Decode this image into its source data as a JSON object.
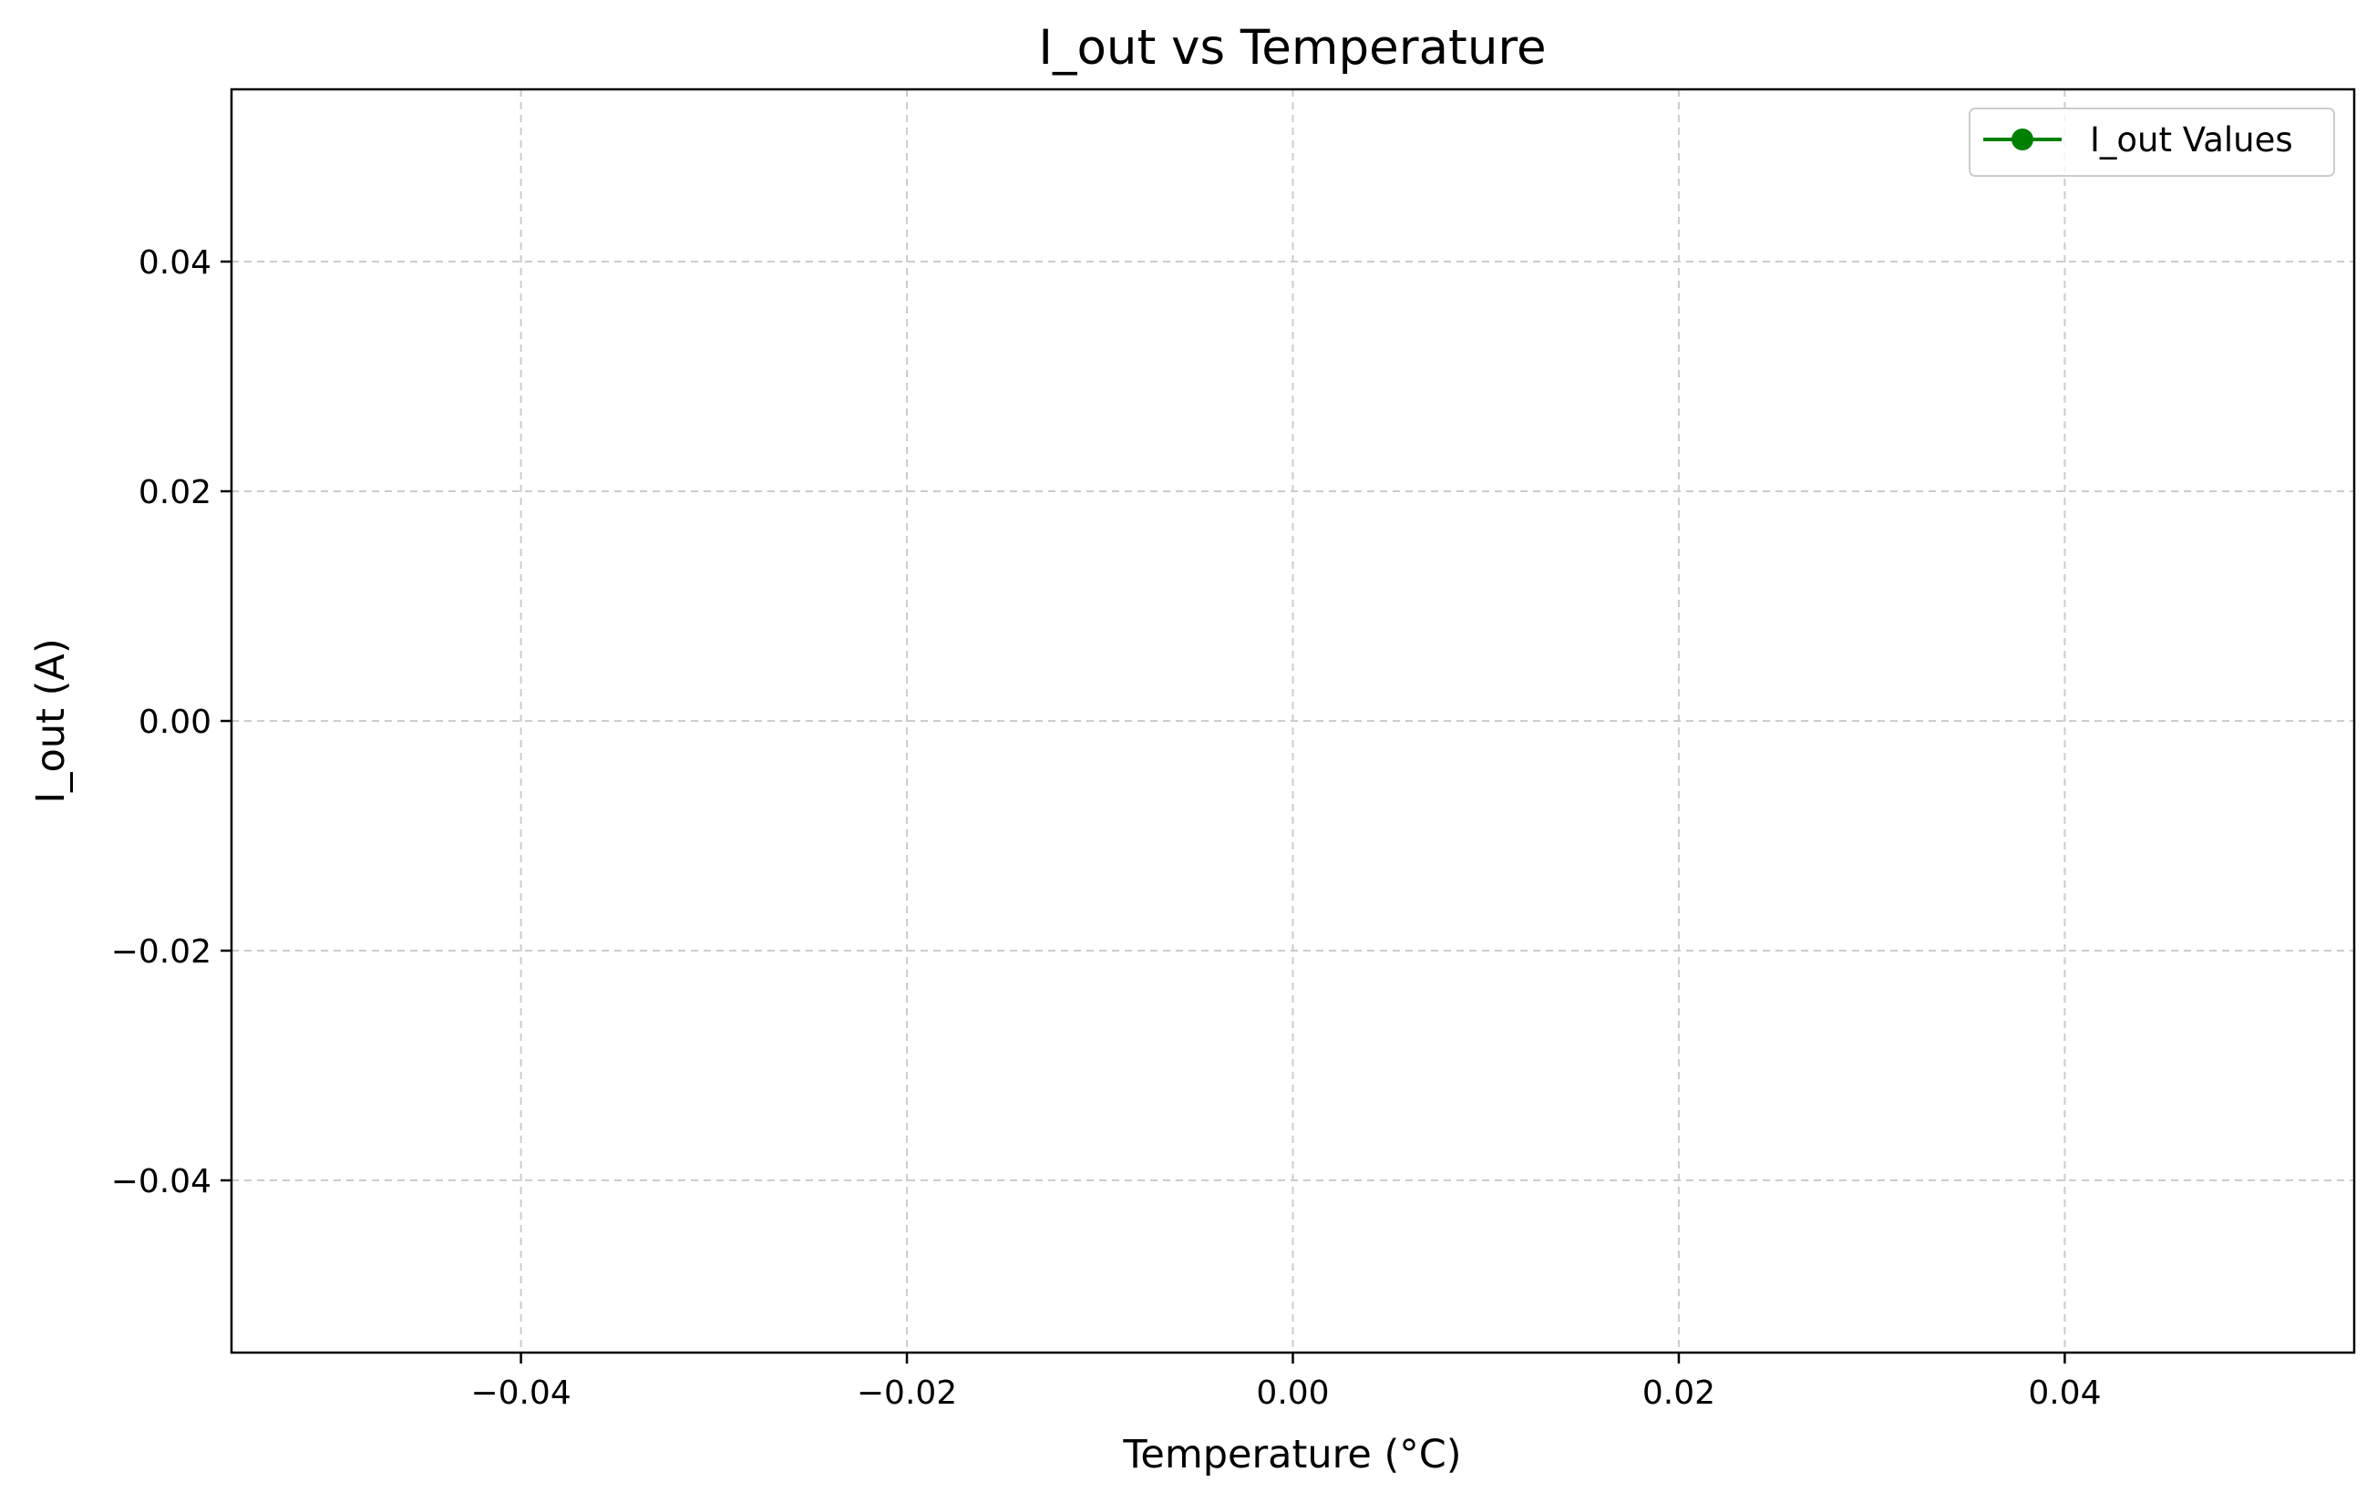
{
  "chart_data": {
    "type": "line",
    "title": "I_out vs Temperature",
    "xlabel": "Temperature (°C)",
    "ylabel": "I_out (A)",
    "xlim": [
      -0.055,
      0.055
    ],
    "ylim": [
      -0.055,
      0.055
    ],
    "xticks": [
      -0.04,
      -0.02,
      0.0,
      0.02,
      0.04
    ],
    "xtick_labels": [
      "−0.04",
      "−0.02",
      "0.00",
      "0.02",
      "0.04"
    ],
    "yticks": [
      0.04,
      0.02,
      0.0,
      -0.02,
      -0.04
    ],
    "ytick_labels": [
      "0.04",
      "0.02",
      "0.00",
      "−0.02",
      "−0.04"
    ],
    "grid": true,
    "legend_position": "top-right",
    "series": [
      {
        "name": "I_out Values",
        "color": "#008000",
        "marker": "circle",
        "x": [],
        "y": []
      }
    ]
  }
}
